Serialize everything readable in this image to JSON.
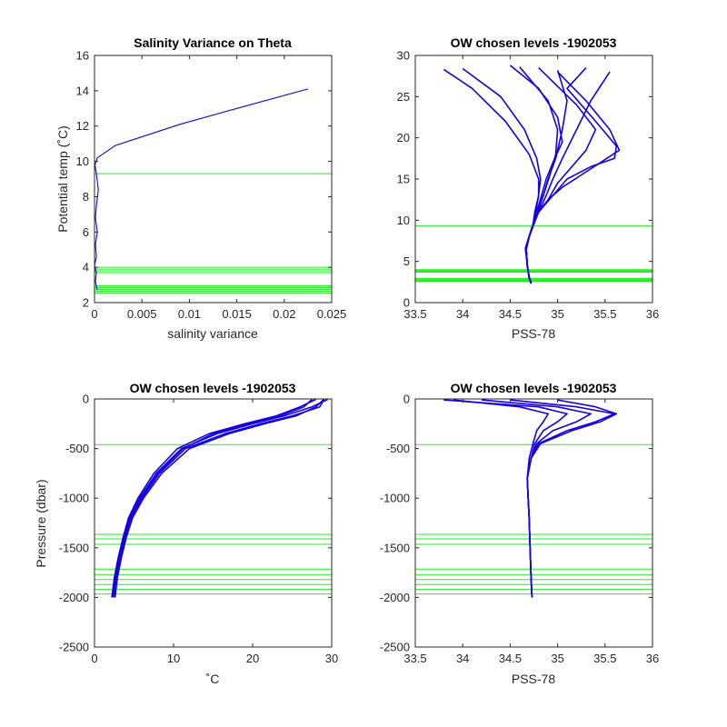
{
  "chart_data": [
    {
      "type": "line",
      "title": "Salinity Variance on Theta",
      "xlabel": "salinity variance",
      "ylabel": "Potential temp (˚C)",
      "xlim": [
        0,
        0.025
      ],
      "ylim": [
        2,
        16
      ],
      "xticks": [
        "0",
        "0.005",
        "0.01",
        "0.015",
        "0.02",
        "0.025"
      ],
      "yticks": [
        "2",
        "4",
        "6",
        "8",
        "10",
        "12",
        "14",
        "16"
      ],
      "y_reversed": false,
      "colors": {
        "series": "#1400e0",
        "levels": "#22ee22"
      },
      "series": [
        {
          "x": [
            0.0225,
            0.015,
            0.009,
            0.0022,
            0.0003,
            5e-05,
            0.0002,
            0.0004,
            0.0002,
            0.0001,
            0.0003,
            0.0001,
            0.0002,
            0.0,
            0.0002,
            0.0001,
            0.0003
          ],
          "y": [
            14.1,
            13.0,
            12.1,
            10.9,
            10.2,
            9.8,
            9.3,
            8.4,
            7.5,
            6.8,
            6.0,
            5.3,
            4.6,
            4.1,
            3.7,
            3.2,
            2.7
          ]
        }
      ],
      "levels": [
        9.3,
        4.0,
        3.9,
        3.8,
        3.7,
        2.95,
        2.85,
        2.75,
        2.65,
        2.55
      ]
    },
    {
      "type": "line",
      "title": "OW chosen levels -1902053",
      "xlabel": "PSS-78",
      "ylabel": "",
      "xlim": [
        33.5,
        36
      ],
      "ylim": [
        0,
        30
      ],
      "xticks": [
        "33.5",
        "34",
        "34.5",
        "35",
        "35.5",
        "36"
      ],
      "yticks": [
        "0",
        "5",
        "10",
        "15",
        "20",
        "25",
        "30"
      ],
      "y_reversed": false,
      "colors": {
        "series": "#1400e0",
        "levels": "#22ee22"
      },
      "series": [
        {
          "x": [
            34.72,
            34.7,
            34.68,
            34.67,
            34.7,
            34.74,
            34.8,
            34.88,
            34.95,
            35.05,
            35.2,
            35.35,
            35.55
          ],
          "y": [
            2.3,
            3.0,
            4.5,
            6.5,
            8.0,
            9.5,
            11.0,
            13.0,
            15.0,
            17.5,
            21.0,
            24.5,
            28.0
          ]
        },
        {
          "x": [
            34.72,
            34.7,
            34.68,
            34.67,
            34.7,
            34.74,
            34.78,
            34.85,
            34.9,
            34.98,
            35.05,
            35.1,
            35.0
          ],
          "y": [
            2.4,
            3.1,
            4.6,
            6.5,
            8.0,
            9.5,
            11.0,
            13.0,
            15.0,
            17.5,
            21.0,
            24.5,
            28.2
          ]
        },
        {
          "x": [
            34.72,
            34.7,
            34.68,
            34.66,
            34.7,
            34.74,
            34.76,
            34.8,
            34.82,
            34.78,
            34.65,
            34.4,
            34.0
          ],
          "y": [
            2.5,
            3.1,
            4.5,
            6.6,
            8.1,
            9.5,
            11.0,
            13.0,
            15.0,
            17.5,
            21.0,
            25.0,
            28.4
          ]
        },
        {
          "x": [
            34.72,
            34.7,
            34.68,
            34.67,
            34.7,
            34.75,
            34.8,
            34.9,
            35.05,
            35.25,
            35.45,
            35.65,
            35.55,
            35.3,
            35.0
          ],
          "y": [
            2.3,
            3.0,
            4.5,
            6.5,
            8.0,
            9.5,
            11.0,
            12.5,
            14.0,
            15.5,
            17.0,
            18.5,
            21.0,
            24.5,
            28.0
          ]
        },
        {
          "x": [
            34.72,
            34.7,
            34.68,
            34.67,
            34.7,
            34.74,
            34.77,
            34.8,
            34.8,
            34.7,
            34.45,
            34.1,
            33.8
          ],
          "y": [
            2.4,
            3.0,
            4.5,
            6.5,
            8.0,
            9.5,
            11.0,
            13.0,
            15.0,
            18.0,
            22.0,
            26.0,
            28.3
          ]
        },
        {
          "x": [
            34.72,
            34.7,
            34.68,
            34.67,
            34.7,
            34.74,
            34.8,
            34.9,
            35.0,
            35.15,
            35.3,
            35.4,
            35.2,
            34.8
          ],
          "y": [
            2.4,
            3.0,
            4.5,
            6.5,
            8.0,
            9.5,
            11.0,
            12.5,
            14.5,
            16.5,
            18.5,
            21.0,
            24.0,
            28.5
          ]
        },
        {
          "x": [
            34.72,
            34.7,
            34.68,
            34.67,
            34.7,
            34.74,
            34.79,
            34.85,
            34.92,
            34.98,
            35.0,
            34.9,
            34.6
          ],
          "y": [
            2.5,
            3.1,
            4.6,
            6.5,
            8.0,
            9.5,
            11.0,
            13.0,
            15.5,
            18.0,
            21.0,
            24.5,
            28.6
          ]
        },
        {
          "x": [
            34.72,
            34.7,
            34.68,
            34.67,
            34.7,
            34.74,
            34.8,
            34.95,
            35.1,
            35.35,
            35.6,
            35.62,
            35.4,
            35.1,
            35.3
          ],
          "y": [
            2.3,
            3.0,
            4.5,
            6.5,
            8.0,
            9.5,
            11.0,
            13.0,
            15.0,
            16.5,
            17.5,
            19.0,
            22.0,
            26.0,
            28.5
          ]
        },
        {
          "x": [
            34.72,
            34.7,
            34.68,
            34.67,
            34.7,
            34.74,
            34.78,
            34.83,
            34.88,
            34.95,
            35.05,
            35.0,
            34.8,
            34.5
          ],
          "y": [
            2.4,
            3.0,
            4.5,
            6.5,
            8.0,
            9.5,
            11.0,
            13.0,
            15.0,
            17.0,
            19.5,
            22.5,
            26.0,
            28.8
          ]
        }
      ],
      "levels": [
        9.3,
        4.0,
        3.9,
        3.8,
        3.7,
        2.95,
        2.85,
        2.75,
        2.65,
        2.55
      ]
    },
    {
      "type": "line",
      "title": "OW chosen levels -1902053",
      "xlabel": "˚C",
      "ylabel": "Pressure (dbar)",
      "xlim": [
        0,
        30
      ],
      "ylim": [
        -2500,
        0
      ],
      "xticks": [
        "0",
        "10",
        "20",
        "30"
      ],
      "yticks": [
        "-2500",
        "-2000",
        "-1500",
        "-1000",
        "-500",
        "0"
      ],
      "y_reversed": false,
      "colors": {
        "series": "#1400e0",
        "levels": "#22ee22"
      },
      "series": [
        {
          "x": [
            2.2,
            2.5,
            3.0,
            3.6,
            4.3,
            5.5,
            7.5,
            10.5,
            14.5,
            19.0,
            23.0,
            26.0,
            28.0
          ],
          "y": [
            -2000,
            -1800,
            -1600,
            -1400,
            -1200,
            -1000,
            -750,
            -500,
            -350,
            -250,
            -170,
            -80,
            -5
          ]
        },
        {
          "x": [
            2.3,
            2.6,
            3.1,
            3.7,
            4.4,
            5.7,
            7.8,
            11.0,
            15.5,
            20.0,
            24.0,
            27.5,
            29.5
          ],
          "y": [
            -2000,
            -1800,
            -1600,
            -1400,
            -1200,
            -1000,
            -750,
            -500,
            -350,
            -250,
            -170,
            -80,
            -5
          ]
        },
        {
          "x": [
            2.5,
            2.8,
            3.3,
            3.9,
            4.7,
            6.0,
            8.2,
            11.5,
            16.5,
            21.0,
            25.0,
            28.5,
            29.0
          ],
          "y": [
            -2000,
            -1800,
            -1600,
            -1400,
            -1200,
            -1000,
            -750,
            -500,
            -350,
            -250,
            -170,
            -80,
            -5
          ]
        },
        {
          "x": [
            2.6,
            2.9,
            3.4,
            4.0,
            4.8,
            6.2,
            8.5,
            12.0,
            17.0,
            21.5,
            25.5,
            28.0,
            29.0
          ],
          "y": [
            -2000,
            -1800,
            -1600,
            -1400,
            -1200,
            -1000,
            -750,
            -500,
            -350,
            -250,
            -170,
            -80,
            -5
          ]
        },
        {
          "x": [
            2.3,
            2.7,
            3.2,
            3.8,
            4.5,
            5.9,
            8.0,
            11.2,
            15.0,
            19.5,
            23.5,
            26.5,
            27.5
          ],
          "y": [
            -2000,
            -1800,
            -1600,
            -1400,
            -1200,
            -1000,
            -750,
            -500,
            -350,
            -250,
            -170,
            -80,
            -5
          ]
        }
      ],
      "levels": [
        -460,
        -1365,
        -1410,
        -1465,
        -1715,
        -1770,
        -1820,
        -1870,
        -1920,
        -1965
      ]
    },
    {
      "type": "line",
      "title": "OW chosen levels -1902053",
      "xlabel": "PSS-78",
      "ylabel": "",
      "xlim": [
        33.5,
        36
      ],
      "ylim": [
        -2500,
        0
      ],
      "xticks": [
        "33.5",
        "34",
        "34.5",
        "35",
        "35.5",
        "36"
      ],
      "yticks": [
        "-2500",
        "-2000",
        "-1500",
        "-1000",
        "-500",
        "0"
      ],
      "y_reversed": false,
      "colors": {
        "series": "#1400e0",
        "levels": "#22ee22"
      },
      "series": [
        {
          "x": [
            34.73,
            34.72,
            34.71,
            34.7,
            34.69,
            34.68,
            34.72,
            34.8,
            35.1,
            35.4,
            35.6,
            35.2,
            34.5
          ],
          "y": [
            -2000,
            -1800,
            -1500,
            -1200,
            -1000,
            -800,
            -600,
            -450,
            -320,
            -230,
            -150,
            -80,
            -10
          ]
        },
        {
          "x": [
            34.73,
            34.72,
            34.71,
            34.7,
            34.69,
            34.68,
            34.72,
            34.78,
            34.95,
            35.2,
            35.35,
            35.0,
            34.2
          ],
          "y": [
            -2000,
            -1800,
            -1500,
            -1200,
            -1000,
            -800,
            -600,
            -450,
            -320,
            -230,
            -150,
            -80,
            -10
          ]
        },
        {
          "x": [
            34.73,
            34.72,
            34.71,
            34.7,
            34.69,
            34.68,
            34.72,
            34.76,
            34.85,
            35.0,
            35.1,
            34.8,
            33.8
          ],
          "y": [
            -2000,
            -1800,
            -1500,
            -1200,
            -1000,
            -800,
            -600,
            -450,
            -320,
            -230,
            -150,
            -80,
            -10
          ]
        },
        {
          "x": [
            34.73,
            34.72,
            34.71,
            34.7,
            34.69,
            34.68,
            34.72,
            34.82,
            35.15,
            35.45,
            35.62,
            35.4,
            35.0
          ],
          "y": [
            -2000,
            -1800,
            -1500,
            -1200,
            -1000,
            -800,
            -600,
            -450,
            -320,
            -230,
            -150,
            -80,
            -10
          ]
        },
        {
          "x": [
            34.73,
            34.72,
            34.71,
            34.7,
            34.69,
            34.68,
            34.7,
            34.74,
            34.78,
            34.85,
            34.9,
            34.6,
            33.9
          ],
          "y": [
            -2000,
            -1800,
            -1500,
            -1200,
            -1000,
            -800,
            -600,
            -450,
            -320,
            -230,
            -150,
            -80,
            -10
          ]
        }
      ],
      "levels": [
        -460,
        -1365,
        -1410,
        -1465,
        -1715,
        -1770,
        -1820,
        -1870,
        -1920,
        -1965
      ]
    }
  ]
}
